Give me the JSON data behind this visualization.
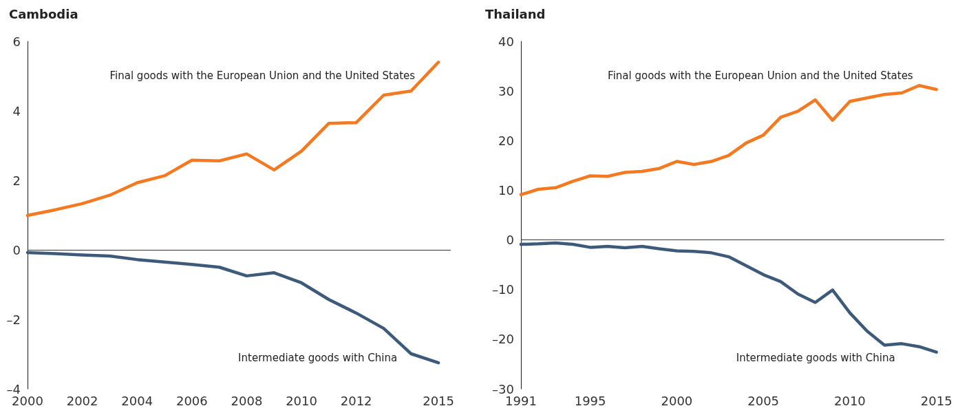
{
  "chart_data": [
    {
      "type": "line",
      "title": "Cambodia",
      "marker": "none",
      "x": [
        2000,
        2001,
        2002,
        2003,
        2004,
        2005,
        2006,
        2007,
        2008,
        2009,
        2010,
        2011,
        2012,
        2013,
        2014,
        2015
      ],
      "series": [
        {
          "name": "Final goods with the European Union and the United States",
          "color": "#f47920",
          "values": [
            0.99,
            1.15,
            1.33,
            1.57,
            1.93,
            2.13,
            2.58,
            2.56,
            2.76,
            2.3,
            2.84,
            3.64,
            3.66,
            4.45,
            4.57,
            5.4
          ]
        },
        {
          "name": "Intermediate goods with China",
          "color": "#3d5a7a",
          "values": [
            -0.08,
            -0.11,
            -0.15,
            -0.18,
            -0.28,
            -0.35,
            -0.42,
            -0.5,
            -0.75,
            -0.66,
            -0.95,
            -1.43,
            -1.82,
            -2.26,
            -2.99,
            -3.25
          ]
        }
      ],
      "xlim": [
        2000,
        2015.45
      ],
      "xticks": [
        2000,
        2002,
        2004,
        2006,
        2008,
        2010,
        2012,
        2015
      ],
      "ylim": [
        -4,
        6
      ],
      "yticks": [
        {
          "value": -4,
          "label": "–4"
        },
        {
          "value": -2,
          "label": "–2"
        },
        0,
        2,
        4,
        6
      ],
      "ref_lines": [
        {
          "axis": "y",
          "value": 0
        }
      ]
    },
    {
      "type": "line",
      "title": "Thailand",
      "marker": "none",
      "x": [
        1991,
        1992,
        1993,
        1994,
        1995,
        1996,
        1997,
        1998,
        1999,
        2000,
        2001,
        2002,
        2003,
        2004,
        2005,
        2006,
        2007,
        2008,
        2009,
        2010,
        2011,
        2012,
        2013,
        2014,
        2015
      ],
      "series": [
        {
          "name": "Final goods with the European Union and the United States",
          "color": "#f47920",
          "values": [
            9.1,
            10.2,
            10.5,
            11.8,
            12.9,
            12.8,
            13.6,
            13.8,
            14.4,
            15.8,
            15.2,
            15.8,
            17.0,
            19.5,
            21.1,
            24.7,
            25.9,
            28.2,
            24.1,
            27.9,
            28.6,
            29.3,
            29.6,
            31.1,
            30.3
          ]
        },
        {
          "name": "Intermediate goods with China",
          "color": "#3d5a7a",
          "values": [
            -0.9,
            -0.8,
            -0.6,
            -0.9,
            -1.5,
            -1.3,
            -1.6,
            -1.3,
            -1.8,
            -2.2,
            -2.3,
            -2.6,
            -3.4,
            -5.2,
            -7.0,
            -8.4,
            -10.9,
            -12.6,
            -10.1,
            -14.7,
            -18.4,
            -21.2,
            -20.9,
            -21.5,
            -22.6
          ]
        }
      ],
      "xlim": [
        1991,
        2015.45
      ],
      "xticks": [
        1991,
        1995,
        2000,
        2005,
        2010,
        2015
      ],
      "ylim": [
        -30,
        40
      ],
      "yticks": [
        {
          "value": -30,
          "label": "–30"
        },
        {
          "value": -20,
          "label": "–20"
        },
        {
          "value": -10,
          "label": "–10"
        },
        0,
        10,
        20,
        30,
        40
      ],
      "ref_lines": [
        {
          "axis": "y",
          "value": 0
        }
      ]
    }
  ]
}
